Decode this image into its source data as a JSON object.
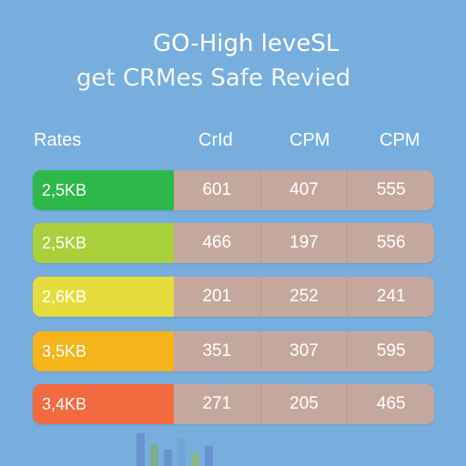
{
  "title": {
    "line1": "GO-High leveSL",
    "line2": "get CRMes Safe Revied"
  },
  "table": {
    "headers": [
      "Rates",
      "CrId",
      "CPM",
      "CPM"
    ],
    "rows": [
      {
        "label": "2,5KB",
        "color": "#2fb84a",
        "values": [
          "601",
          "407",
          "555"
        ]
      },
      {
        "label": "2,5KB",
        "color": "#a9cf3a",
        "values": [
          "466",
          "197",
          "556"
        ]
      },
      {
        "label": "2,6KB",
        "color": "#e6dc3d",
        "values": [
          "201",
          "252",
          "241"
        ]
      },
      {
        "label": "3,5KB",
        "color": "#f5b41c",
        "values": [
          "351",
          "307",
          "595"
        ]
      },
      {
        "label": "3,4KB",
        "color": "#f26a3f",
        "values": [
          "271",
          "205",
          "465"
        ]
      }
    ]
  },
  "colors": {
    "background": "#78aede",
    "value_cell": "#c5a89d"
  }
}
